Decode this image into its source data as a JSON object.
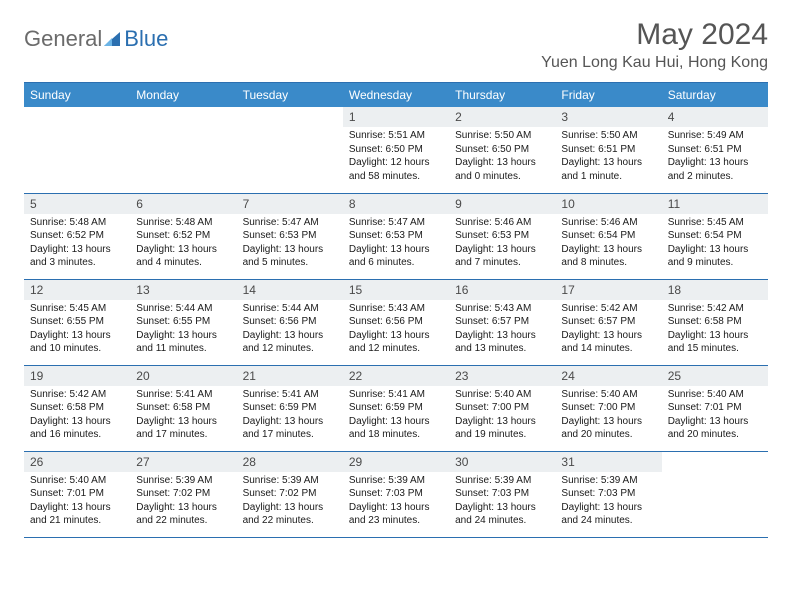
{
  "brand": {
    "name1": "General",
    "name2": "Blue"
  },
  "title": "May 2024",
  "location": "Yuen Long Kau Hui, Hong Kong",
  "colors": {
    "header_bg": "#3a8ac9",
    "rule": "#2b6fb0",
    "daynum_bg": "#eceff1",
    "text_muted": "#555555",
    "logo_gray": "#6b6b6b",
    "logo_blue": "#2b6fb0"
  },
  "weekdays": [
    "Sunday",
    "Monday",
    "Tuesday",
    "Wednesday",
    "Thursday",
    "Friday",
    "Saturday"
  ],
  "layout": {
    "first_weekday_index": 3,
    "days_in_month": 31
  },
  "days": {
    "1": {
      "sunrise": "5:51 AM",
      "sunset": "6:50 PM",
      "daylight": "12 hours and 58 minutes."
    },
    "2": {
      "sunrise": "5:50 AM",
      "sunset": "6:50 PM",
      "daylight": "13 hours and 0 minutes."
    },
    "3": {
      "sunrise": "5:50 AM",
      "sunset": "6:51 PM",
      "daylight": "13 hours and 1 minute."
    },
    "4": {
      "sunrise": "5:49 AM",
      "sunset": "6:51 PM",
      "daylight": "13 hours and 2 minutes."
    },
    "5": {
      "sunrise": "5:48 AM",
      "sunset": "6:52 PM",
      "daylight": "13 hours and 3 minutes."
    },
    "6": {
      "sunrise": "5:48 AM",
      "sunset": "6:52 PM",
      "daylight": "13 hours and 4 minutes."
    },
    "7": {
      "sunrise": "5:47 AM",
      "sunset": "6:53 PM",
      "daylight": "13 hours and 5 minutes."
    },
    "8": {
      "sunrise": "5:47 AM",
      "sunset": "6:53 PM",
      "daylight": "13 hours and 6 minutes."
    },
    "9": {
      "sunrise": "5:46 AM",
      "sunset": "6:53 PM",
      "daylight": "13 hours and 7 minutes."
    },
    "10": {
      "sunrise": "5:46 AM",
      "sunset": "6:54 PM",
      "daylight": "13 hours and 8 minutes."
    },
    "11": {
      "sunrise": "5:45 AM",
      "sunset": "6:54 PM",
      "daylight": "13 hours and 9 minutes."
    },
    "12": {
      "sunrise": "5:45 AM",
      "sunset": "6:55 PM",
      "daylight": "13 hours and 10 minutes."
    },
    "13": {
      "sunrise": "5:44 AM",
      "sunset": "6:55 PM",
      "daylight": "13 hours and 11 minutes."
    },
    "14": {
      "sunrise": "5:44 AM",
      "sunset": "6:56 PM",
      "daylight": "13 hours and 12 minutes."
    },
    "15": {
      "sunrise": "5:43 AM",
      "sunset": "6:56 PM",
      "daylight": "13 hours and 12 minutes."
    },
    "16": {
      "sunrise": "5:43 AM",
      "sunset": "6:57 PM",
      "daylight": "13 hours and 13 minutes."
    },
    "17": {
      "sunrise": "5:42 AM",
      "sunset": "6:57 PM",
      "daylight": "13 hours and 14 minutes."
    },
    "18": {
      "sunrise": "5:42 AM",
      "sunset": "6:58 PM",
      "daylight": "13 hours and 15 minutes."
    },
    "19": {
      "sunrise": "5:42 AM",
      "sunset": "6:58 PM",
      "daylight": "13 hours and 16 minutes."
    },
    "20": {
      "sunrise": "5:41 AM",
      "sunset": "6:58 PM",
      "daylight": "13 hours and 17 minutes."
    },
    "21": {
      "sunrise": "5:41 AM",
      "sunset": "6:59 PM",
      "daylight": "13 hours and 17 minutes."
    },
    "22": {
      "sunrise": "5:41 AM",
      "sunset": "6:59 PM",
      "daylight": "13 hours and 18 minutes."
    },
    "23": {
      "sunrise": "5:40 AM",
      "sunset": "7:00 PM",
      "daylight": "13 hours and 19 minutes."
    },
    "24": {
      "sunrise": "5:40 AM",
      "sunset": "7:00 PM",
      "daylight": "13 hours and 20 minutes."
    },
    "25": {
      "sunrise": "5:40 AM",
      "sunset": "7:01 PM",
      "daylight": "13 hours and 20 minutes."
    },
    "26": {
      "sunrise": "5:40 AM",
      "sunset": "7:01 PM",
      "daylight": "13 hours and 21 minutes."
    },
    "27": {
      "sunrise": "5:39 AM",
      "sunset": "7:02 PM",
      "daylight": "13 hours and 22 minutes."
    },
    "28": {
      "sunrise": "5:39 AM",
      "sunset": "7:02 PM",
      "daylight": "13 hours and 22 minutes."
    },
    "29": {
      "sunrise": "5:39 AM",
      "sunset": "7:03 PM",
      "daylight": "13 hours and 23 minutes."
    },
    "30": {
      "sunrise": "5:39 AM",
      "sunset": "7:03 PM",
      "daylight": "13 hours and 24 minutes."
    },
    "31": {
      "sunrise": "5:39 AM",
      "sunset": "7:03 PM",
      "daylight": "13 hours and 24 minutes."
    }
  },
  "labels": {
    "sunrise": "Sunrise:",
    "sunset": "Sunset:",
    "daylight": "Daylight:"
  }
}
